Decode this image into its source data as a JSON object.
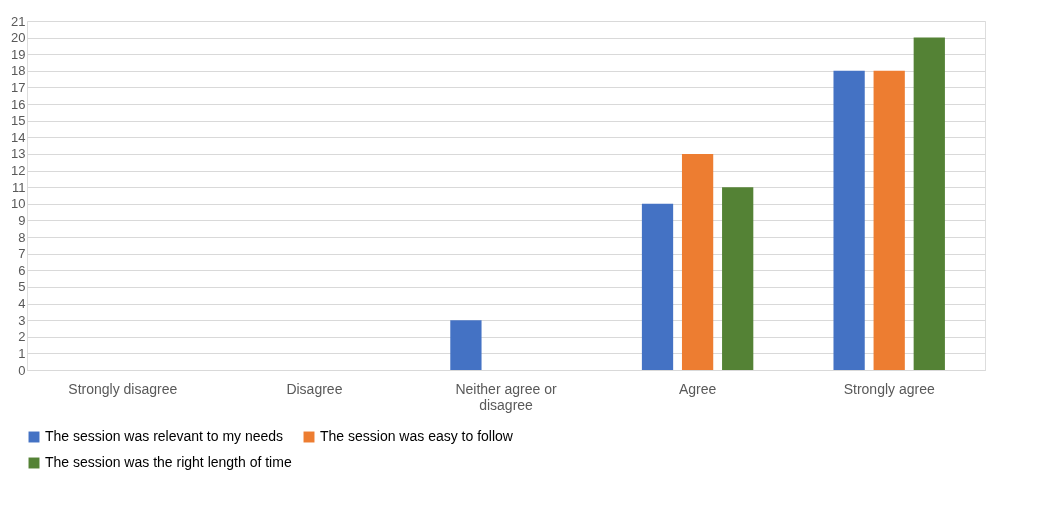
{
  "chart_data": {
    "type": "bar",
    "categories": [
      "Strongly disagree",
      "Disagree",
      "Neither agree or disagree",
      "Agree",
      "Strongly agree"
    ],
    "series": [
      {
        "name": "The session was relevant to my needs",
        "color": "#4472c4",
        "values": [
          0,
          0,
          3,
          10,
          18
        ]
      },
      {
        "name": "The session was easy to follow",
        "color": "#ed7d31",
        "values": [
          0,
          0,
          0,
          13,
          18
        ]
      },
      {
        "name": "The session was the right length of time",
        "color": "#548235",
        "values": [
          0,
          0,
          0,
          11,
          20
        ]
      }
    ],
    "ylim": [
      0,
      21
    ],
    "yticks": [
      0,
      1,
      2,
      3,
      4,
      5,
      6,
      7,
      8,
      9,
      10,
      11,
      12,
      13,
      14,
      15,
      16,
      17,
      18,
      19,
      20,
      21
    ],
    "grid": "y",
    "legend": "bottom"
  }
}
